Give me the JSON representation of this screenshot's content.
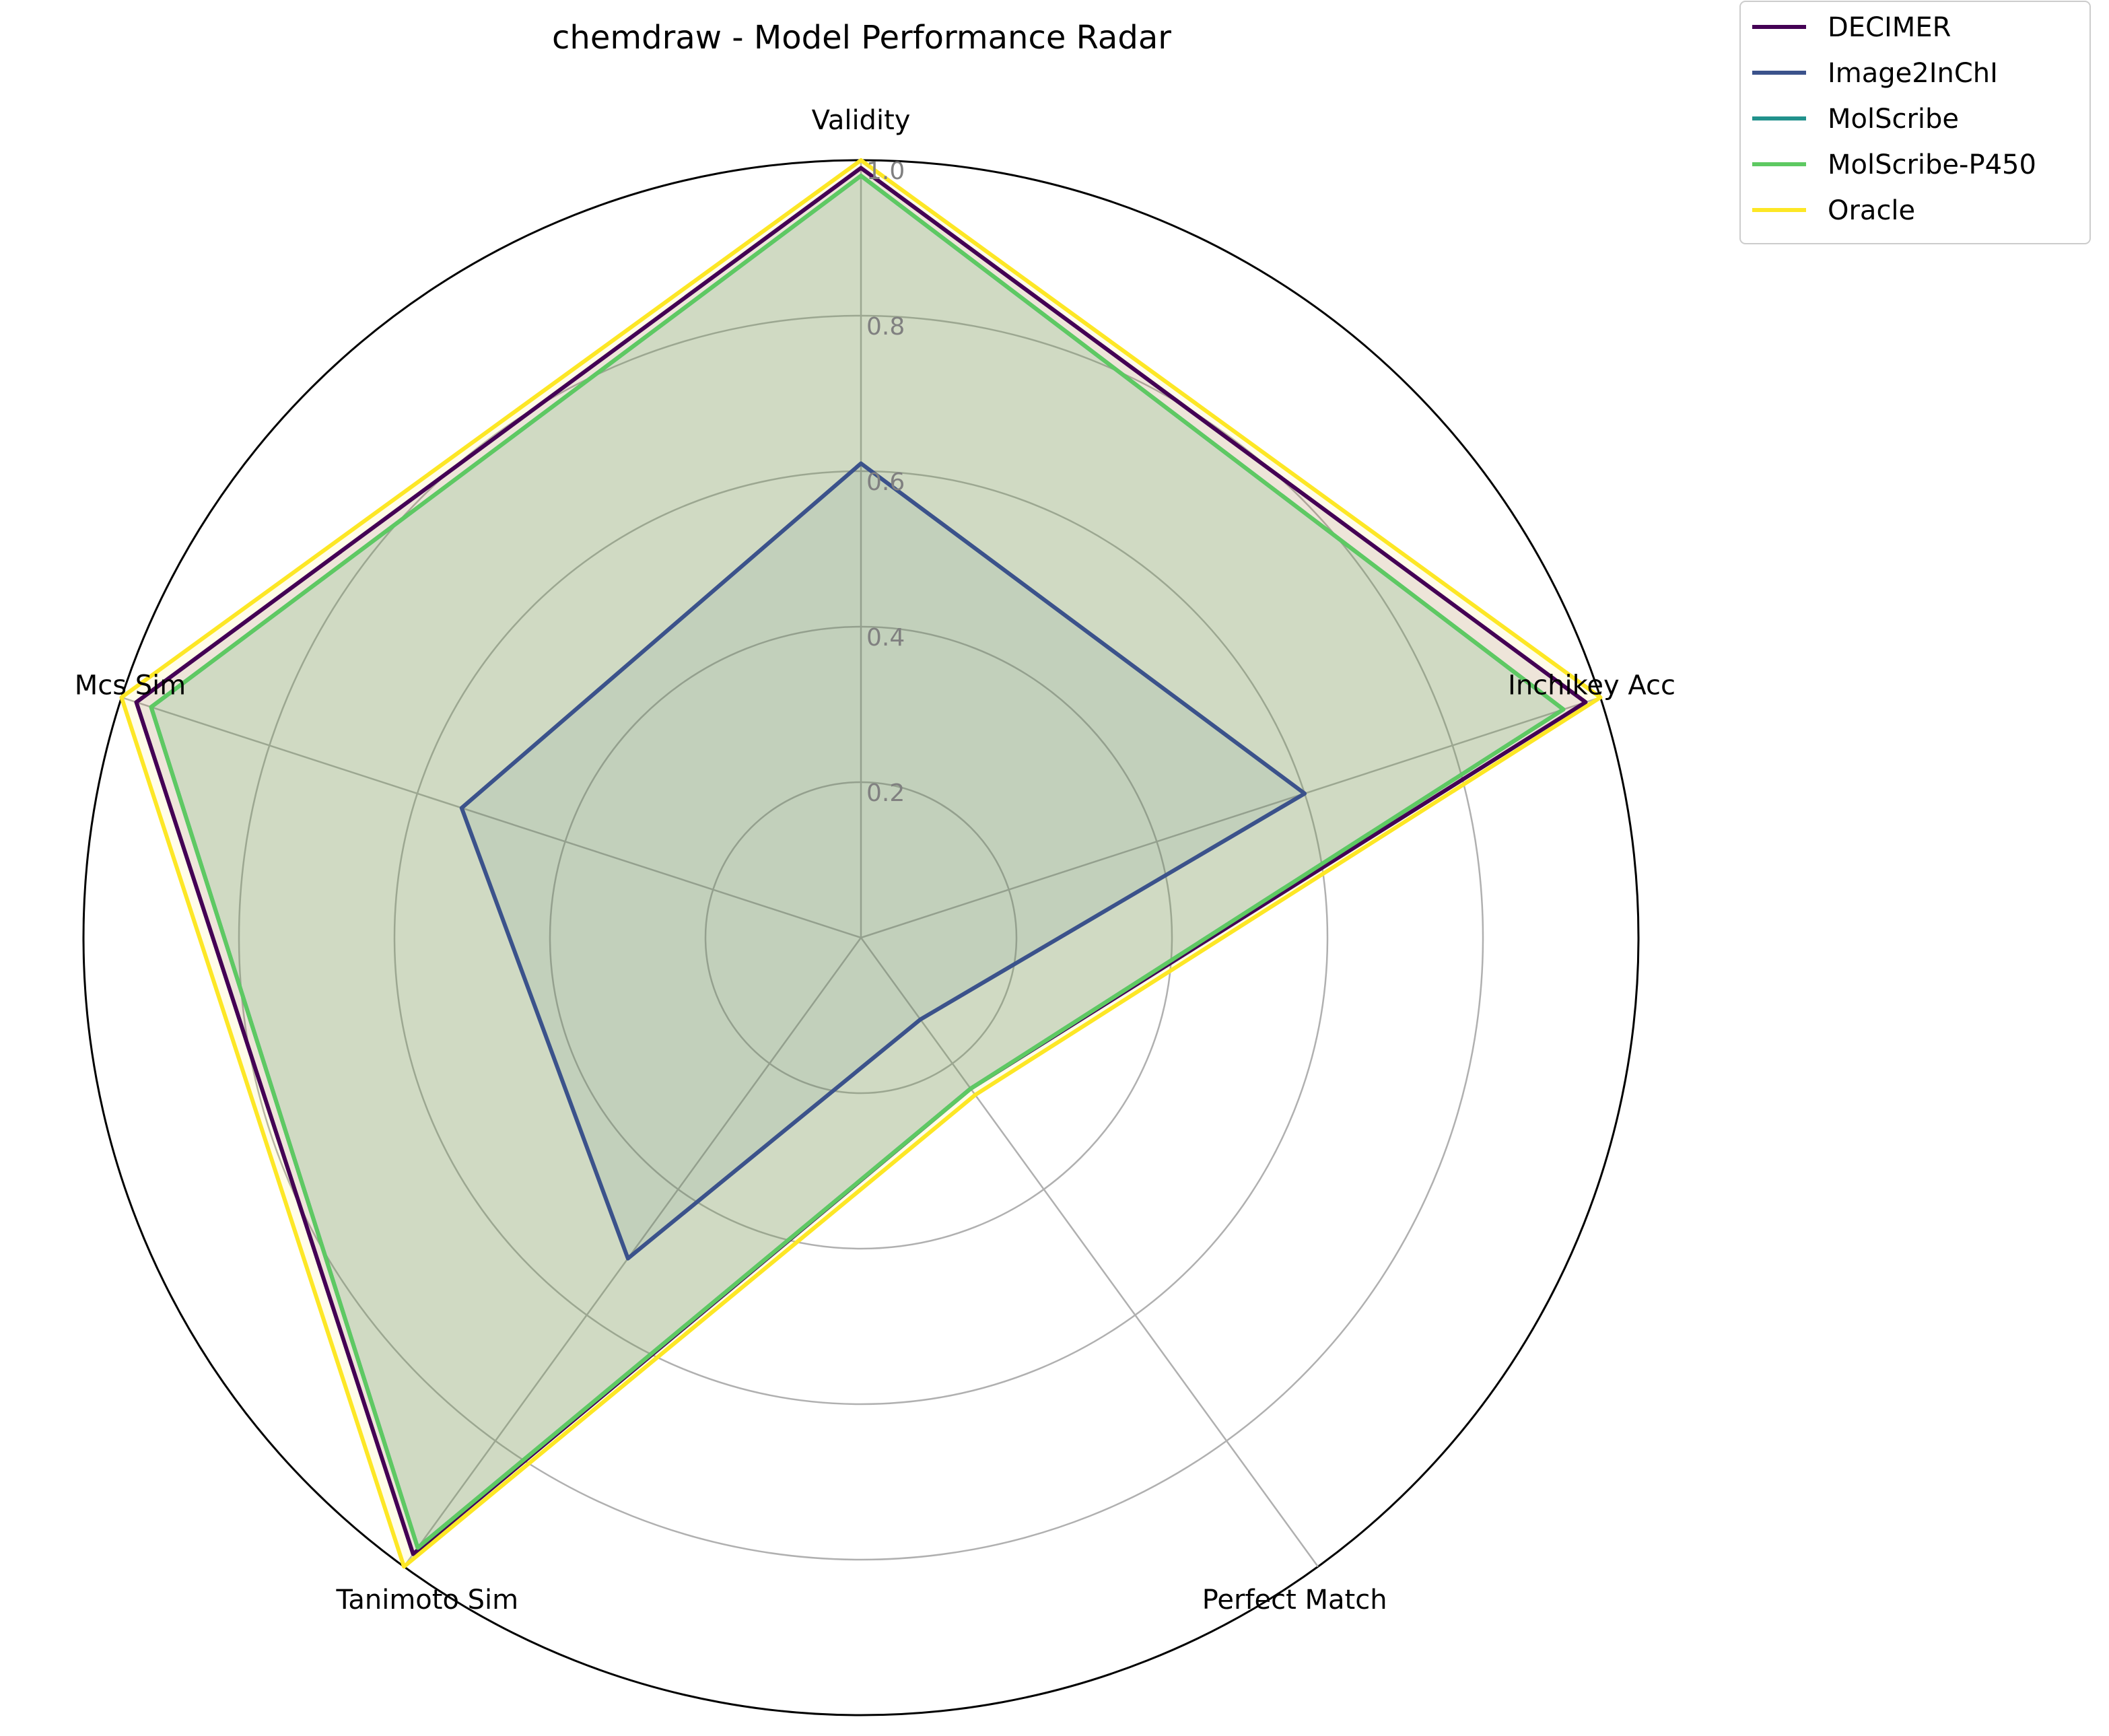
{
  "chart_data": {
    "type": "radar",
    "title": "chemdraw - Model Performance Radar",
    "axes": [
      "Validity",
      "Inchikey Acc",
      "Perfect Match",
      "Tanimoto Sim",
      "Mcs Sim"
    ],
    "rlim": [
      0,
      1.0
    ],
    "rticks": [
      "0.2",
      "0.4",
      "0.6",
      "0.8",
      "1.0"
    ],
    "grid": true,
    "legend_position": "top-right outside",
    "series": [
      {
        "name": "DECIMER",
        "color": "#440154",
        "values": [
          0.99,
          0.98,
          0.24,
          0.98,
          0.98
        ]
      },
      {
        "name": "Image2InChI",
        "color": "#3b528b",
        "values": [
          0.61,
          0.6,
          0.13,
          0.51,
          0.54
        ]
      },
      {
        "name": "MolScribe",
        "color": "#21918c",
        "values": [
          0.98,
          0.95,
          0.24,
          0.97,
          0.96
        ]
      },
      {
        "name": "MolScribe-P450",
        "color": "#5ec962",
        "values": [
          0.98,
          0.95,
          0.24,
          0.97,
          0.96
        ]
      },
      {
        "name": "Oracle",
        "color": "#fde725",
        "values": [
          1.0,
          1.0,
          0.25,
          1.0,
          1.0
        ]
      }
    ]
  }
}
